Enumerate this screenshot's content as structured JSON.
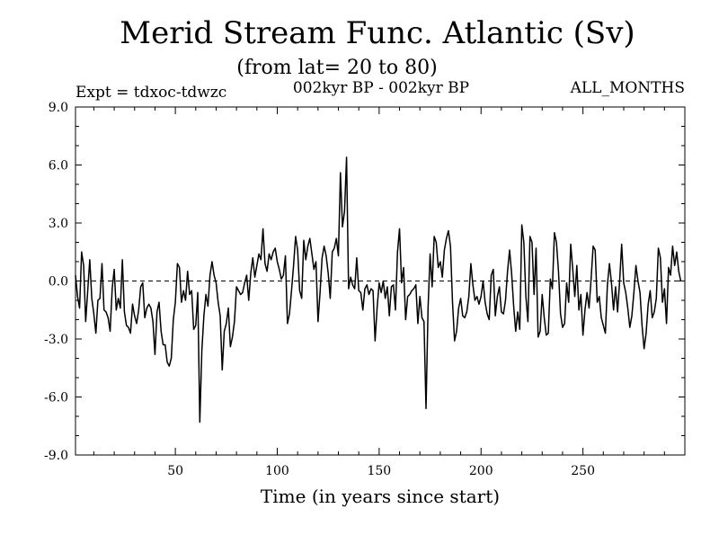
{
  "chart_data": {
    "type": "line",
    "title": "Merid Stream Func. Atlantic (Sv)",
    "subtitle": "(from lat= 20 to 80)",
    "header_left": "Expt = tdxoc-tdwzc",
    "header_center": "002kyr BP - 002kyr BP",
    "header_right": "ALL_MONTHS",
    "xlabel": "Time (in years since start)",
    "ylabel": "",
    "xlim": [
      1,
      300
    ],
    "ylim": [
      -9,
      9
    ],
    "xticks": [
      50,
      100,
      150,
      200,
      250
    ],
    "yticks": [
      -9,
      -6,
      -3,
      0,
      3,
      6,
      9
    ],
    "ytick_labels": [
      "-9.0",
      "-6.0",
      "-3.0",
      "0.0",
      "3.0",
      "6.0",
      "9.0"
    ],
    "reference_line": {
      "y": 0,
      "style": "dashed"
    },
    "grid": false,
    "series": [
      {
        "color": "#000000",
        "x_start": 1,
        "x_step": 1,
        "values": [
          0.3,
          -0.8,
          -1.4,
          1.5,
          0.8,
          -2.1,
          -0.5,
          1.1,
          -0.9,
          -1.7,
          -2.7,
          -1.0,
          -0.9,
          0.9,
          -1.5,
          -1.6,
          -1.9,
          -2.6,
          -0.4,
          0.6,
          -1.5,
          -0.9,
          -1.4,
          1.1,
          -1.6,
          -2.3,
          -2.4,
          -2.7,
          -1.2,
          -1.8,
          -2.2,
          -1.5,
          -0.3,
          -0.1,
          -1.9,
          -1.4,
          -1.2,
          -1.4,
          -2.1,
          -3.8,
          -1.6,
          -1.1,
          -2.6,
          -3.3,
          -3.3,
          -4.2,
          -4.4,
          -4.0,
          -2.0,
          -1.1,
          0.9,
          0.7,
          -1.1,
          -0.5,
          -1.0,
          0.5,
          -0.7,
          -0.5,
          -2.5,
          -2.3,
          -0.6,
          -7.3,
          -3.6,
          -1.8,
          -0.7,
          -1.3,
          0.3,
          1.0,
          0.3,
          -0.1,
          -1.1,
          -1.8,
          -4.6,
          -2.6,
          -2.2,
          -1.4,
          -3.4,
          -2.9,
          -2.1,
          -0.3,
          -0.5,
          -0.7,
          -0.6,
          -0.1,
          0.3,
          -1.0,
          0.4,
          1.2,
          0.2,
          0.8,
          1.4,
          1.1,
          2.7,
          0.9,
          0.5,
          1.4,
          1.1,
          1.5,
          1.7,
          1.0,
          0.6,
          0.1,
          0.3,
          1.3,
          -2.2,
          -1.7,
          -0.5,
          0.8,
          2.3,
          1.6,
          -0.5,
          -0.9,
          2.1,
          1.1,
          1.8,
          2.2,
          1.4,
          0.6,
          1.0,
          -2.1,
          -0.6,
          1.2,
          1.8,
          1.3,
          0.4,
          -0.9,
          1.5,
          1.7,
          2.2,
          1.3,
          5.6,
          2.8,
          3.6,
          6.4,
          -0.4,
          0.2,
          -0.2,
          -0.4,
          1.2,
          -0.5,
          -0.6,
          -1.5,
          -0.4,
          -0.2,
          -0.7,
          -0.4,
          -0.5,
          -3.1,
          -1.4,
          -0.1,
          -0.6,
          0.0,
          -0.9,
          -0.3,
          -1.8,
          -0.3,
          -0.2,
          -1.5,
          1.5,
          2.7,
          -0.1,
          0.7,
          -2.0,
          -0.8,
          -0.7,
          -0.5,
          -0.4,
          -0.2,
          -2.2,
          -0.8,
          -1.9,
          -2.1,
          -6.6,
          -1.4,
          1.4,
          -0.3,
          2.3,
          2.0,
          0.7,
          1.0,
          0.2,
          1.6,
          2.2,
          2.6,
          1.8,
          -1.1,
          -3.1,
          -2.6,
          -1.4,
          -0.9,
          -1.8,
          -1.9,
          -1.6,
          -0.8,
          0.9,
          -0.2,
          -1.0,
          -0.8,
          -1.2,
          -0.8,
          0.0,
          -1.1,
          -1.7,
          -2.0,
          0.3,
          0.6,
          -1.8,
          -0.8,
          -0.3,
          -1.6,
          -1.7,
          -1.0,
          0.5,
          1.6,
          0.4,
          -1.3,
          -2.6,
          -1.6,
          -2.5,
          2.9,
          2.0,
          -0.8,
          -2.1,
          2.3,
          2.0,
          -0.7,
          1.7,
          -2.9,
          -2.6,
          -0.7,
          -1.9,
          -2.8,
          -2.7,
          0.1,
          -0.4,
          2.5,
          2.0,
          0.5,
          -1.7,
          -2.4,
          -2.2,
          -0.1,
          -1.1,
          1.9,
          0.6,
          -0.8,
          0.8,
          -1.5,
          -0.7,
          -2.8,
          -1.5,
          -0.6,
          -1.4,
          0.1,
          1.8,
          1.6,
          -1.1,
          -0.8,
          -1.9,
          -2.3,
          -2.7,
          -0.2,
          0.9,
          -0.1,
          -1.5,
          -0.3,
          -1.6,
          0.0,
          1.9,
          -0.1,
          -0.6,
          -1.4,
          -2.4,
          -1.8,
          -0.6,
          0.8,
          0.0,
          -0.6,
          -2.3,
          -3.5,
          -2.7,
          -1.2,
          -0.5,
          -1.9,
          -1.6,
          -0.9,
          1.7,
          1.2,
          -1.1,
          -0.4,
          -2.2,
          0.7,
          0.3,
          1.8,
          0.8,
          1.5,
          0.5,
          0.0
        ]
      }
    ]
  }
}
